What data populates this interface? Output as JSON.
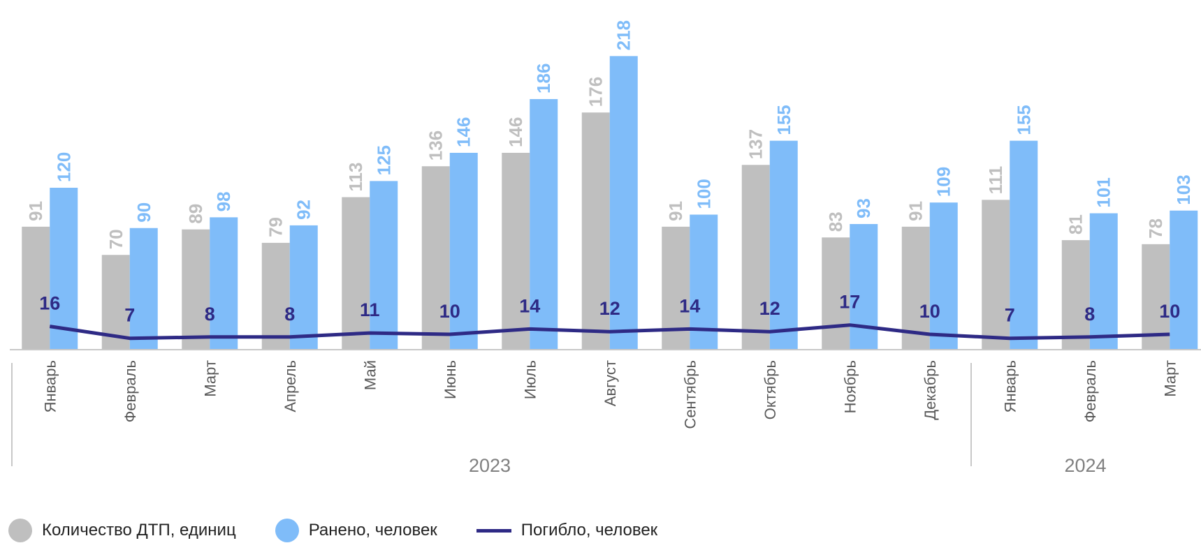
{
  "colors": {
    "accidents": "#bfbfbf",
    "injured": "#7fbcf9",
    "killed": "#2e2a85",
    "axis": "#c8c8c8",
    "tick_text": "#595959",
    "year_text": "#7f7f7f"
  },
  "chart_data": {
    "type": "bar",
    "categories": [
      "Январь",
      "Февраль",
      "Март",
      "Апрель",
      "Май",
      "Июнь",
      "Июль",
      "Август",
      "Сентябрь",
      "Октябрь",
      "Ноябрь",
      "Декабрь",
      "Январь",
      "Февраль",
      "Март"
    ],
    "groups": [
      {
        "label": "2023",
        "count": 12
      },
      {
        "label": "2024",
        "count": 3
      }
    ],
    "series": [
      {
        "name": "Количество ДТП, единиц",
        "type": "bar",
        "color": "#bfbfbf",
        "values": [
          91,
          70,
          89,
          79,
          113,
          136,
          146,
          176,
          91,
          137,
          83,
          91,
          111,
          81,
          78
        ]
      },
      {
        "name": "Ранено, человек",
        "type": "bar",
        "color": "#7fbcf9",
        "values": [
          120,
          90,
          98,
          92,
          125,
          146,
          186,
          218,
          100,
          155,
          93,
          109,
          155,
          101,
          103
        ]
      },
      {
        "name": "Погибло, человек",
        "type": "line",
        "color": "#2e2a85",
        "values": [
          16,
          7,
          8,
          8,
          11,
          10,
          14,
          12,
          14,
          12,
          17,
          10,
          7,
          8,
          10
        ]
      }
    ],
    "ylim": [
      0,
      230
    ],
    "grid": false,
    "legend_position": "bottom"
  },
  "legend": [
    {
      "label": "Количество ДТП, единиц",
      "shape": "circle",
      "color": "#bfbfbf"
    },
    {
      "label": "Ранено, человек",
      "shape": "circle",
      "color": "#7fbcf9"
    },
    {
      "label": "Погибло, человек",
      "shape": "line",
      "color": "#2e2a85"
    }
  ]
}
